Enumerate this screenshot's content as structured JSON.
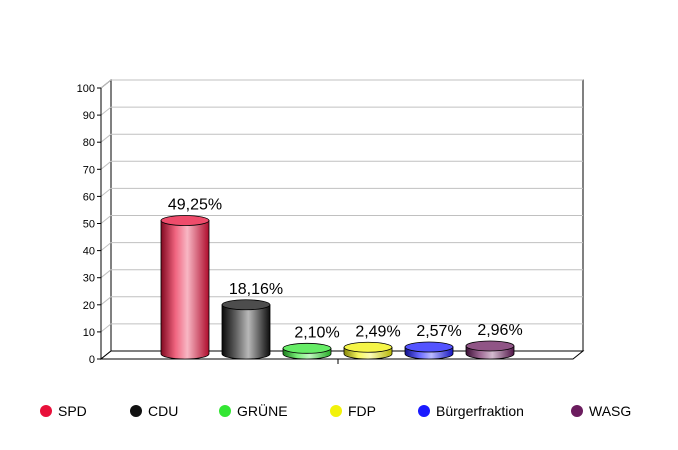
{
  "chart_data": {
    "type": "bar",
    "categories": [
      "SPD",
      "CDU",
      "GRÜNE",
      "FDP",
      "Bürgerfraktion",
      "WASG"
    ],
    "values": [
      49.25,
      18.16,
      2.1,
      2.49,
      2.57,
      2.96
    ],
    "value_labels": [
      "49,25%",
      "18,16%",
      "2,10%",
      "2,49%",
      "2,57%",
      "2,96%"
    ],
    "colors": [
      "#e8103a",
      "#111111",
      "#33e633",
      "#f2f20a",
      "#1a1aff",
      "#6b1c5e"
    ],
    "ylim": [
      0,
      100
    ],
    "yticks": [
      "0",
      "10",
      "20",
      "30",
      "40",
      "50",
      "60",
      "70",
      "80",
      "90",
      "100"
    ],
    "grid": true,
    "legend_position": "bottom",
    "title": "",
    "xlabel": "",
    "ylabel": ""
  },
  "legend": [
    {
      "label": "SPD",
      "color": "#e8103a"
    },
    {
      "label": "CDU",
      "color": "#111111"
    },
    {
      "label": "GRÜNE",
      "color": "#33e633"
    },
    {
      "label": "FDP",
      "color": "#f2f20a"
    },
    {
      "label": "Bürgerfraktion",
      "color": "#1a1aff"
    },
    {
      "label": "WASG",
      "color": "#6b1c5e"
    }
  ]
}
